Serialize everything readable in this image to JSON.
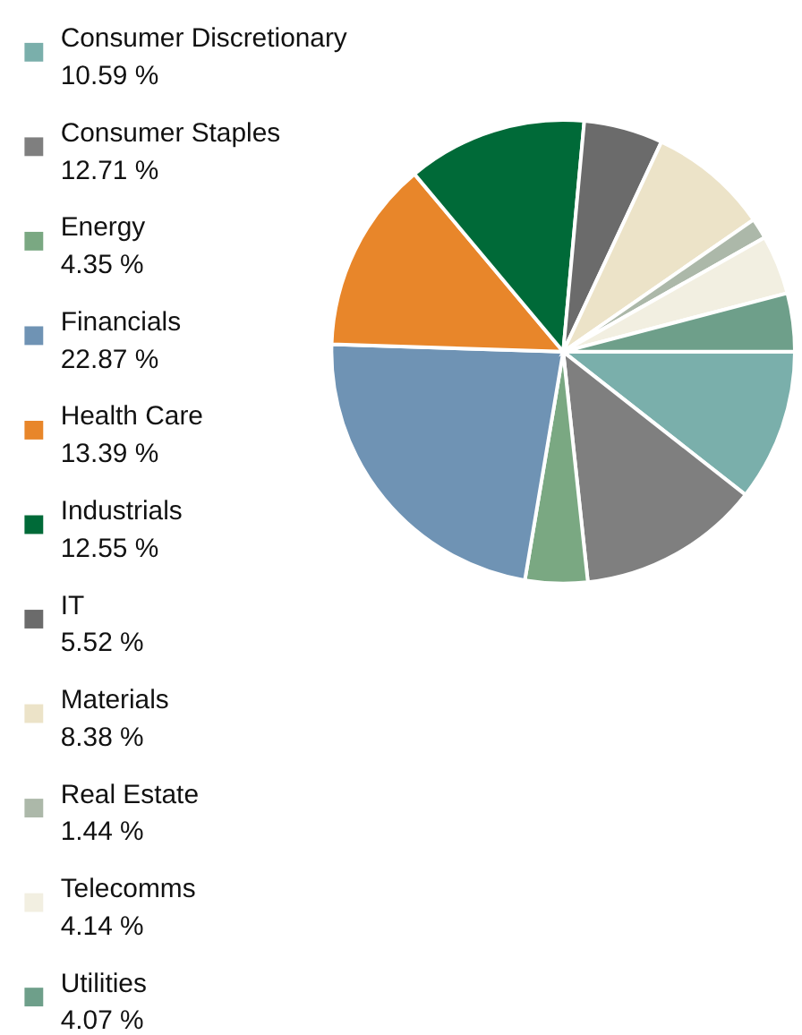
{
  "chart_data": {
    "type": "pie",
    "categories": [
      "Consumer Discretionary",
      "Consumer Staples",
      "Energy",
      "Financials",
      "Health Care",
      "Industrials",
      "IT",
      "Materials",
      "Real Estate",
      "Telecomms",
      "Utilities"
    ],
    "values": [
      10.59,
      12.71,
      4.35,
      22.87,
      13.39,
      12.55,
      5.52,
      8.38,
      1.44,
      4.14,
      4.07
    ],
    "value_labels": [
      "10.59 %",
      "12.71 %",
      "4.35 %",
      "22.87 %",
      "13.39 %",
      "12.55 %",
      "5.52 %",
      "8.38 %",
      "1.44 %",
      "4.14 %",
      "4.07 %"
    ],
    "colors": [
      "#7aafab",
      "#7f7f7f",
      "#7aa882",
      "#6f93b4",
      "#e8862a",
      "#006a38",
      "#6b6b6b",
      "#ece3c8",
      "#acb8a9",
      "#f2efe1",
      "#6e9f8a"
    ],
    "legend": "left"
  }
}
